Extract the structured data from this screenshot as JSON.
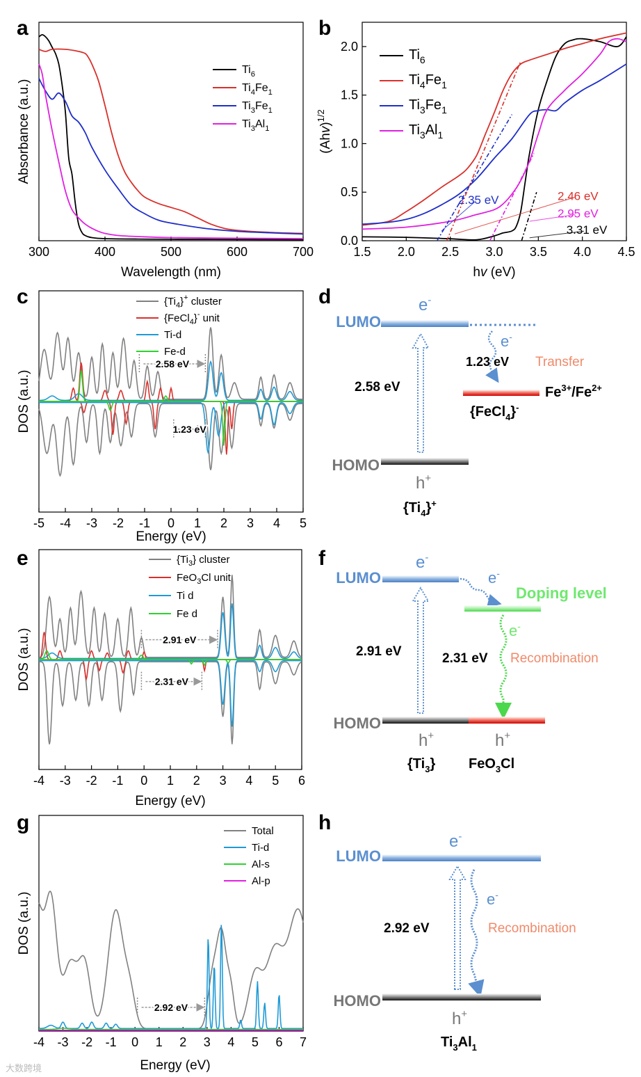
{
  "panel_labels": {
    "a": "a",
    "b": "b",
    "c": "c",
    "d": "d",
    "e": "e",
    "f": "f",
    "g": "g",
    "h": "h"
  },
  "colors": {
    "black": "#000000",
    "red": "#d9302b",
    "blue": "#1f2fc8",
    "magenta": "#e020e0",
    "grey": "#808080",
    "cyan": "#1f9ad6",
    "green": "#2fd12f",
    "lumo": "#5b8fd0",
    "orange": "#f08a6a",
    "dopgreen": "#6fe86f",
    "darkred": "#d00000"
  },
  "chart_data": [
    {
      "id": "a",
      "type": "line",
      "xlabel": "Wavelength (nm)",
      "ylabel": "Absorbance (a.u.)",
      "xlim": [
        300,
        700
      ],
      "ylim": [
        0,
        1.05
      ],
      "xticks": [
        "300",
        "400",
        "500",
        "600",
        "700"
      ],
      "series": [
        {
          "name": "Ti6",
          "label_main": "Ti",
          "label_sub": "6",
          "color": "#000000",
          "x": [
            300,
            305,
            310,
            315,
            320,
            325,
            330,
            335,
            340,
            345,
            350,
            355,
            360,
            365,
            370,
            380,
            400,
            450,
            500,
            600,
            700
          ],
          "y": [
            0.98,
            0.99,
            0.98,
            0.96,
            0.93,
            0.9,
            0.85,
            0.75,
            0.62,
            0.4,
            0.32,
            0.18,
            0.08,
            0.04,
            0.025,
            0.015,
            0.01,
            0.008,
            0.007,
            0.006,
            0.005
          ]
        },
        {
          "name": "Ti4Fe1",
          "label_main": "Ti",
          "label_sub": "4",
          "label_main2": "Fe",
          "label_sub2": "1",
          "color": "#d9302b",
          "x": [
            300,
            310,
            320,
            340,
            360,
            370,
            375,
            380,
            390,
            400,
            410,
            420,
            430,
            440,
            450,
            460,
            480,
            500,
            520,
            540,
            560,
            580,
            600,
            650,
            700
          ],
          "y": [
            0.92,
            0.91,
            0.92,
            0.92,
            0.91,
            0.9,
            0.88,
            0.85,
            0.77,
            0.65,
            0.52,
            0.41,
            0.33,
            0.28,
            0.24,
            0.21,
            0.18,
            0.16,
            0.14,
            0.11,
            0.08,
            0.06,
            0.05,
            0.04,
            0.035
          ]
        },
        {
          "name": "Ti3Fe1",
          "label_main": "Ti",
          "label_sub": "3",
          "label_main2": "Fe",
          "label_sub2": "1",
          "color": "#1f2fc8",
          "x": [
            300,
            310,
            320,
            330,
            340,
            350,
            360,
            370,
            380,
            400,
            420,
            440,
            460,
            480,
            500,
            550,
            600,
            650,
            700
          ],
          "y": [
            0.78,
            0.72,
            0.68,
            0.71,
            0.67,
            0.6,
            0.57,
            0.52,
            0.45,
            0.34,
            0.25,
            0.17,
            0.13,
            0.1,
            0.085,
            0.06,
            0.045,
            0.038,
            0.032
          ]
        },
        {
          "name": "Ti3Al1",
          "label_main": "Ti",
          "label_sub": "3",
          "label_main2": "Al",
          "label_sub2": "1",
          "color": "#e020e0",
          "x": [
            300,
            305,
            310,
            320,
            330,
            340,
            350,
            360,
            370,
            380,
            390,
            400,
            420,
            450,
            500,
            600,
            700
          ],
          "y": [
            0.85,
            0.8,
            0.7,
            0.53,
            0.38,
            0.24,
            0.15,
            0.11,
            0.08,
            0.06,
            0.045,
            0.035,
            0.025,
            0.02,
            0.015,
            0.012,
            0.01
          ]
        }
      ],
      "legend_position": "top-right"
    },
    {
      "id": "b",
      "type": "line",
      "xlabel": "hv (eV)",
      "ylabel": "(Ahv)1/2",
      "xlabel_main": "h",
      "xlabel_italic": "v",
      "xlabel_rest": " (eV)",
      "ylabel_main": "(Ah",
      "ylabel_italic": "v",
      "ylabel_rest": ")",
      "ylabel_sup": "1/2",
      "xlim": [
        1.5,
        4.5
      ],
      "ylim": [
        0,
        2.25
      ],
      "xticks": [
        "1.5",
        "2.0",
        "2.5",
        "3.0",
        "3.5",
        "4.0",
        "4.5"
      ],
      "yticks": [
        "0.0",
        "0.5",
        "1.0",
        "1.5",
        "2.0"
      ],
      "series": [
        {
          "name": "Ti6",
          "label_main": "Ti",
          "label_sub": "6",
          "color": "#000000",
          "x": [
            1.5,
            2.0,
            2.5,
            2.8,
            3.0,
            3.1,
            3.2,
            3.25,
            3.3,
            3.35,
            3.4,
            3.5,
            3.6,
            3.7,
            3.8,
            3.9,
            4.0,
            4.2,
            4.4,
            4.5
          ],
          "y": [
            0.04,
            0.035,
            0.02,
            0.01,
            0.05,
            0.08,
            0.1,
            0.15,
            0.3,
            0.6,
            0.9,
            1.35,
            1.65,
            1.9,
            2.03,
            2.07,
            2.08,
            2.05,
            2.0,
            2.1
          ]
        },
        {
          "name": "Ti4Fe1",
          "label_main": "Ti",
          "label_sub": "4",
          "label_main2": "Fe",
          "label_sub2": "1",
          "color": "#d9302b",
          "x": [
            1.5,
            1.8,
            2.0,
            2.2,
            2.4,
            2.6,
            2.7,
            2.8,
            2.9,
            3.0,
            3.1,
            3.2,
            3.3,
            3.4,
            3.5,
            3.6,
            3.8,
            4.0,
            4.2,
            4.5
          ],
          "y": [
            0.16,
            0.2,
            0.3,
            0.42,
            0.55,
            0.67,
            0.75,
            0.88,
            1.1,
            1.32,
            1.55,
            1.72,
            1.82,
            1.86,
            1.89,
            1.92,
            1.98,
            2.03,
            2.08,
            2.14
          ]
        },
        {
          "name": "Ti3Fe1",
          "label_main": "Ti",
          "label_sub": "3",
          "label_main2": "Fe",
          "label_sub2": "1",
          "color": "#1f2fc8",
          "x": [
            1.5,
            1.8,
            2.0,
            2.2,
            2.4,
            2.6,
            2.8,
            3.0,
            3.2,
            3.4,
            3.5,
            3.6,
            3.7,
            3.8,
            4.0,
            4.2,
            4.5
          ],
          "y": [
            0.17,
            0.19,
            0.22,
            0.28,
            0.37,
            0.48,
            0.64,
            0.85,
            1.05,
            1.3,
            1.34,
            1.35,
            1.34,
            1.42,
            1.55,
            1.65,
            1.82
          ]
        },
        {
          "name": "Ti3Al1",
          "label_main": "Ti",
          "label_sub": "3",
          "label_main2": "Al",
          "label_sub2": "1",
          "color": "#e020e0",
          "x": [
            1.5,
            2.0,
            2.5,
            2.8,
            3.0,
            3.1,
            3.2,
            3.3,
            3.4,
            3.5,
            3.6,
            3.8,
            4.0,
            4.2,
            4.3,
            4.4,
            4.5
          ],
          "y": [
            0.12,
            0.14,
            0.2,
            0.27,
            0.32,
            0.38,
            0.48,
            0.62,
            0.82,
            1.1,
            1.35,
            1.55,
            1.72,
            1.92,
            2.05,
            2.08,
            2.05
          ]
        }
      ],
      "tangents": [
        {
          "color": "#000000",
          "x1": 3.31,
          "y1": 0.0,
          "x2": 3.48,
          "y2": 0.5
        },
        {
          "color": "#d9302b",
          "x1": 2.46,
          "y1": 0.0,
          "x2": 3.3,
          "y2": 1.85
        },
        {
          "color": "#1f2fc8",
          "x1": 2.35,
          "y1": 0.0,
          "x2": 3.2,
          "y2": 1.3
        },
        {
          "color": "#e020e0",
          "x1": 2.95,
          "y1": 0.0,
          "x2": 3.45,
          "y2": 0.9
        }
      ],
      "annotations": [
        {
          "text": "2.35 eV",
          "color": "#1f2fc8",
          "tx": 2.82,
          "ty": 0.38,
          "ax": 2.4,
          "ay": 0.1
        },
        {
          "text": "2.46 eV",
          "color": "#d9302b",
          "tx": 3.95,
          "ty": 0.42,
          "ax": 2.55,
          "ay": 0.07
        },
        {
          "text": "2.95 eV",
          "color": "#e020e0",
          "tx": 3.95,
          "ty": 0.24,
          "ax": 3.4,
          "ay": 0.2
        },
        {
          "text": "3.31 eV",
          "color": "#000000",
          "tx": 4.05,
          "ty": 0.07,
          "ax": 3.4,
          "ay": 0.03
        }
      ],
      "legend_position": "top-left"
    },
    {
      "id": "c",
      "type": "line",
      "xlabel": "Energy (eV)",
      "ylabel": "DOS (a.u.)",
      "xlim": [
        -5,
        5
      ],
      "ylim": [
        -1.0,
        1.0
      ],
      "xticks": [
        "-5",
        "-4",
        "-3",
        "-2",
        "-1",
        "0",
        "1",
        "2",
        "3",
        "4",
        "5"
      ],
      "legend": [
        {
          "label_pre": "{Ti",
          "label_sub": "4",
          "label_post": "}",
          "label_sup": "+",
          "label_tail": " cluster",
          "color": "#808080"
        },
        {
          "label_pre": "{FeCl",
          "label_sub": "4",
          "label_post": "}",
          "label_sup": "-",
          "label_tail": " unit",
          "color": "#d9302b"
        },
        {
          "label_pre": "Ti-d",
          "color": "#1f9ad6"
        },
        {
          "label_pre": "Fe-d",
          "color": "#2fd12f"
        }
      ],
      "gap_labels": [
        {
          "text": "2.58 eV",
          "x1": -1.2,
          "x2": 1.3,
          "y": 0.34
        },
        {
          "text": "1.23 eV",
          "x1": 0.1,
          "x2": 1.3,
          "y": -0.25
        }
      ]
    },
    {
      "id": "e",
      "type": "line",
      "xlabel": "Energy (eV)",
      "ylabel": "DOS (a.u.)",
      "xlim": [
        -4,
        6
      ],
      "ylim": [
        -1.0,
        1.0
      ],
      "xticks": [
        "-4",
        "-3",
        "-2",
        "-1",
        "0",
        "1",
        "2",
        "3",
        "4",
        "5",
        "6"
      ],
      "legend": [
        {
          "label_pre": "{Ti",
          "label_sub": "3",
          "label_post": "} cluster",
          "color": "#808080"
        },
        {
          "label_pre": "FeO",
          "label_sub": "3",
          "label_post": "Cl unit",
          "color": "#d9302b"
        },
        {
          "label_pre": "Ti d",
          "color": "#1f9ad6"
        },
        {
          "label_pre": "Fe d",
          "color": "#2fd12f"
        }
      ],
      "gap_labels": [
        {
          "text": "2.91 eV",
          "x1": -0.1,
          "x2": 2.8,
          "y": 0.18
        },
        {
          "text": "2.31 eV",
          "x1": -0.1,
          "x2": 2.2,
          "y": -0.2
        }
      ]
    },
    {
      "id": "g",
      "type": "line",
      "xlabel": "Energy (eV)",
      "ylabel": "DOS (a.u.)",
      "xlim": [
        -4,
        7
      ],
      "ylim": [
        0,
        1.0
      ],
      "xticks": [
        "-4",
        "-3",
        "-2",
        "-1",
        "0",
        "1",
        "2",
        "3",
        "4",
        "5",
        "6",
        "7"
      ],
      "legend": [
        {
          "label_pre": "Total",
          "color": "#808080"
        },
        {
          "label_pre": "Ti-d",
          "color": "#1f9ad6"
        },
        {
          "label_pre": "Al-s",
          "color": "#2fd12f"
        },
        {
          "label_pre": "Al-p",
          "color": "#e020e0"
        }
      ],
      "gap_labels": [
        {
          "text": "2.92 eV",
          "x1": 0.1,
          "x2": 2.9,
          "y": 0.11
        }
      ]
    }
  ],
  "diagram_d": {
    "lumo": "LUMO",
    "homo": "HOMO",
    "e_top": "e",
    "e_sup": "-",
    "h": "h",
    "h_sup": "+",
    "gap": "2.58 eV",
    "gap2": "1.23 eV",
    "transfer": "Transfer",
    "e_mid": "e",
    "e_mid_sup": "-",
    "unit_pre": "{FeCl",
    "unit_sub": "4",
    "unit_post": "}",
    "unit_sup": "-",
    "redox_pre": "Fe",
    "redox_sup1": "3+",
    "redox_mid": "/Fe",
    "redox_sup2": "2+",
    "cluster_pre": "{Ti",
    "cluster_sub": "4",
    "cluster_post": "}",
    "cluster_sup": "+"
  },
  "diagram_f": {
    "lumo": "LUMO",
    "homo": "HOMO",
    "e_top": "e",
    "e_sup": "-",
    "h1": "h",
    "h1_sup": "+",
    "h2": "h",
    "h2_sup": "+",
    "gap": "2.91 eV",
    "gap2": "2.31 eV",
    "doping": "Doping level",
    "recombination": "Recombination",
    "e_mid": "e",
    "e_mid_sup": "-",
    "e_low": "e",
    "e_low_sup": "-",
    "cluster_pre": "{Ti",
    "cluster_sub": "3",
    "cluster_post": "}",
    "unit_pre": "FeO",
    "unit_sub": "3",
    "unit_post": "Cl"
  },
  "diagram_h": {
    "lumo": "LUMO",
    "homo": "HOMO",
    "e_top": "e",
    "e_sup": "-",
    "h": "h",
    "h_sup": "+",
    "gap": "2.92 eV",
    "recombination": "Recombination",
    "e_mid": "e",
    "e_mid_sup": "-",
    "compound_pre": "Ti",
    "compound_sub1": "3",
    "compound_mid": "Al",
    "compound_sub2": "1"
  },
  "watermark": "大数跨境"
}
